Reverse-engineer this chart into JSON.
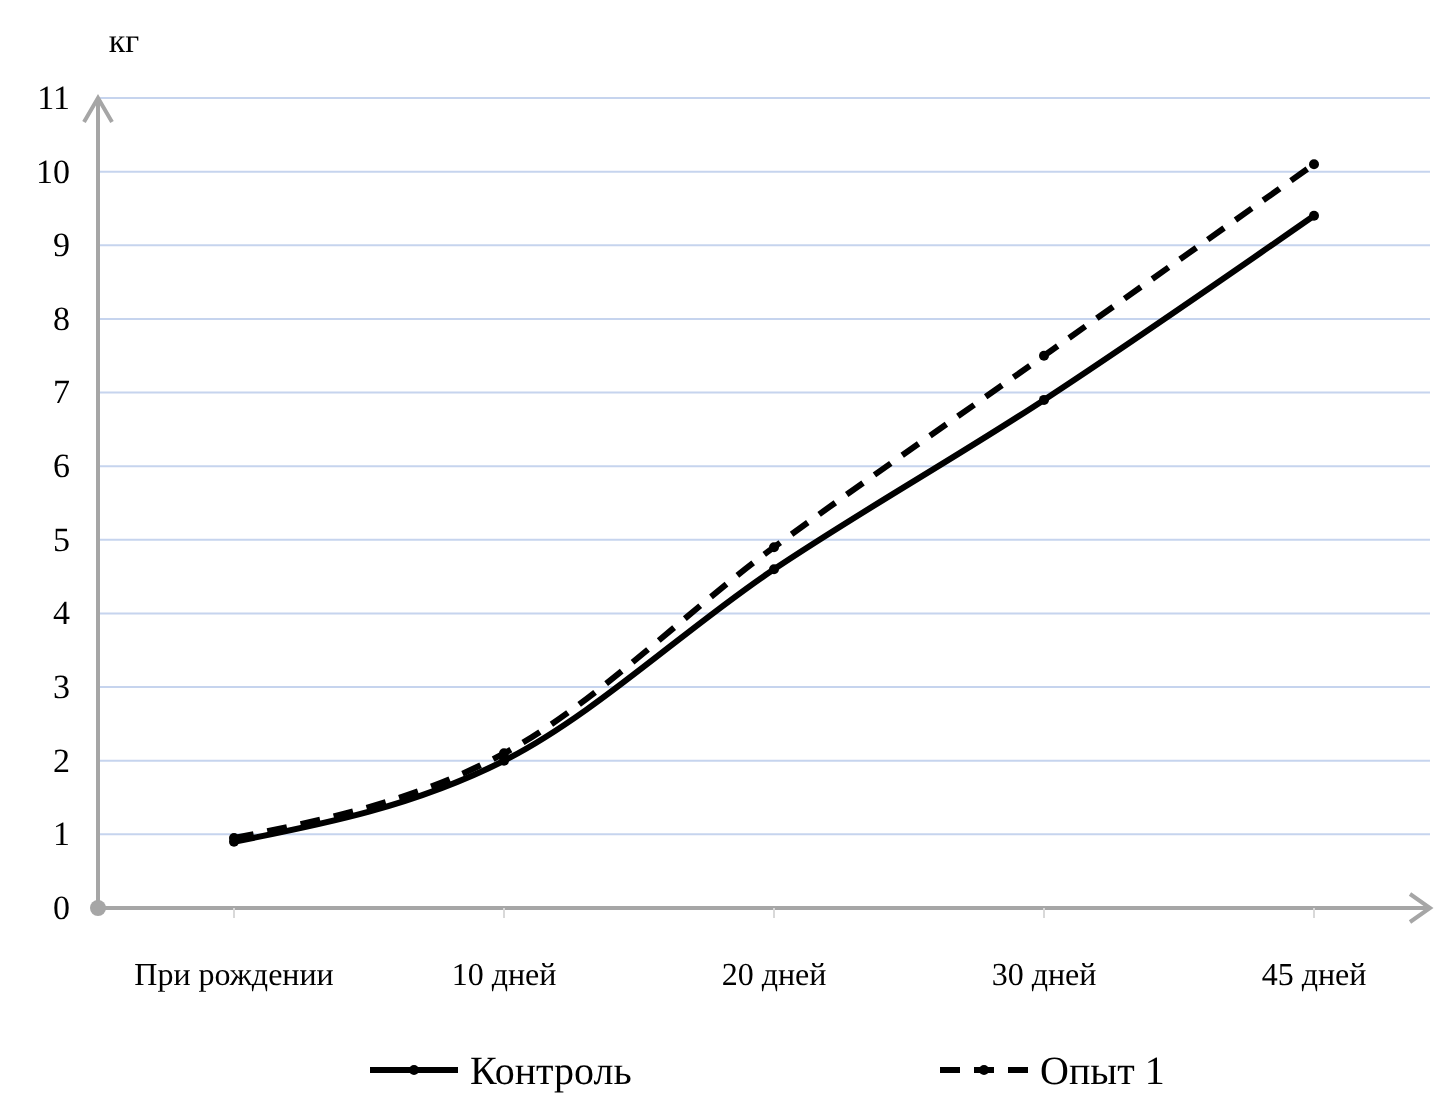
{
  "chart_data": {
    "type": "line",
    "ylabel": "кг",
    "categories": [
      "При рождении",
      "10 дней",
      "20 дней",
      "30 дней",
      "45 дней"
    ],
    "series": [
      {
        "name": "Контроль",
        "color": "#000000",
        "line_style": "solid",
        "values": [
          0.9,
          2.0,
          4.6,
          6.9,
          9.4
        ]
      },
      {
        "name": "Опыт 1",
        "color": "#000000",
        "line_style": "dashed",
        "values": [
          0.95,
          2.1,
          4.9,
          7.5,
          10.1
        ]
      }
    ],
    "ylim": [
      0,
      11
    ],
    "yticks": [
      0,
      1,
      2,
      3,
      4,
      5,
      6,
      7,
      8,
      9,
      10,
      11
    ],
    "grid": "y",
    "legend": "bottom",
    "marker": "circle"
  }
}
